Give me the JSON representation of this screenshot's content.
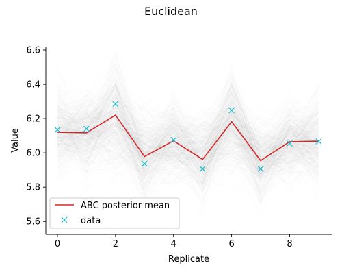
{
  "chart_data": {
    "type": "line",
    "title": "Euclidean",
    "xlabel": "Replicate",
    "ylabel": "Value",
    "xlim": [
      -0.4,
      9.45
    ],
    "ylim": [
      5.525,
      6.62
    ],
    "xticks": [
      0,
      2,
      4,
      6,
      8
    ],
    "yticks": [
      5.6,
      5.8,
      6.0,
      6.2,
      6.4,
      6.6
    ],
    "xtick_labels": [
      "0",
      "2",
      "4",
      "6",
      "8"
    ],
    "ytick_labels": [
      "5.6",
      "5.8",
      "6.0",
      "6.2",
      "6.4",
      "6.6"
    ],
    "x": [
      0,
      1,
      2,
      3,
      4,
      5,
      6,
      7,
      8,
      9
    ],
    "series": [
      {
        "name": "ABC posterior mean",
        "kind": "line",
        "color": "#d62728",
        "values": [
          6.12,
          6.117,
          6.22,
          5.978,
          6.07,
          5.962,
          6.182,
          5.955,
          6.065,
          6.068
        ]
      },
      {
        "name": "data",
        "kind": "marker-x",
        "color": "#17becf",
        "values": [
          6.135,
          6.14,
          6.285,
          5.937,
          6.075,
          5.907,
          6.248,
          5.907,
          6.055,
          6.067
        ]
      }
    ],
    "posterior_band": {
      "color": "#000000",
      "spread": [
        0.13,
        0.12,
        0.17,
        0.12,
        0.12,
        0.12,
        0.16,
        0.12,
        0.12,
        0.14
      ]
    },
    "legend": {
      "position": "lower-left",
      "entries": [
        "ABC posterior mean",
        "data"
      ]
    },
    "grid": false
  }
}
